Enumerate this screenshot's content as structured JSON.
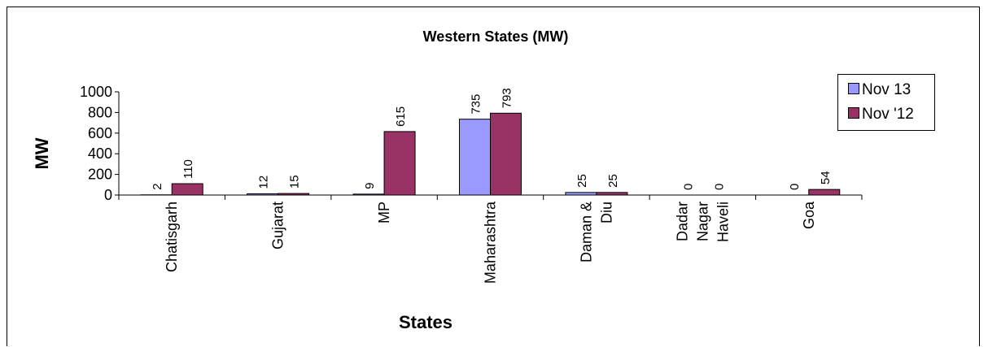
{
  "chart_data": {
    "type": "bar",
    "title": "Western States (MW)",
    "xlabel": "States",
    "ylabel": "MW",
    "categories": [
      [
        "Chatisgarh"
      ],
      [
        "Gujarat"
      ],
      [
        "MP"
      ],
      [
        "Maharashtra"
      ],
      [
        "Daman &",
        "Diu"
      ],
      [
        "Dadar",
        "Nagar",
        "Haveli"
      ],
      [
        "Goa"
      ]
    ],
    "series": [
      {
        "name": "Nov 13",
        "color": "#9999ff",
        "values": [
          2,
          12,
          9,
          735,
          25,
          0,
          0
        ]
      },
      {
        "name": "Nov '12",
        "color": "#993366",
        "values": [
          110,
          15,
          615,
          793,
          25,
          0,
          54
        ]
      }
    ],
    "ylim": [
      0,
      1000
    ],
    "yticks": [
      0,
      200,
      400,
      600,
      800,
      1000
    ],
    "grid": false,
    "legend_position": "right"
  }
}
